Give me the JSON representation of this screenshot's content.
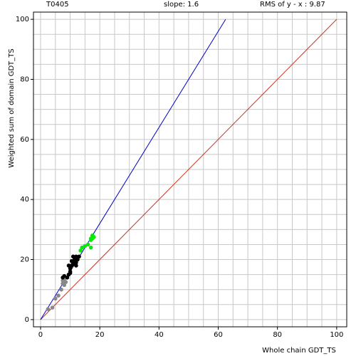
{
  "chart_data": {
    "type": "scatter",
    "header": [
      "T0405",
      "slope: 1.6",
      "RMS of  y - x : 9.87"
    ],
    "x_label": "Whole chain GDT_TS",
    "y_label": "Weighted sum of domain GDT_TS",
    "xlim": [
      -2.4,
      103.4
    ],
    "ylim": [
      -2.4,
      102.4
    ],
    "xticks": [
      0,
      20,
      40,
      60,
      80,
      100
    ],
    "yticks": [
      0,
      20,
      40,
      60,
      80,
      100
    ],
    "grid_lines": [
      0,
      5,
      10,
      15,
      20,
      25,
      30,
      35,
      40,
      45,
      50,
      55,
      60,
      65,
      70,
      75,
      80,
      85,
      90,
      95,
      100
    ],
    "fit_line": {
      "slope": 1.6,
      "color": "#0000cc"
    },
    "reference_line": {
      "slope": 1,
      "color": "#cc3322"
    },
    "series": [
      {
        "color": "#888888",
        "x": [
          2.5,
          4,
          5,
          6,
          7,
          7.5,
          8,
          8,
          8.5,
          7.5
        ],
        "y": [
          3.5,
          4,
          7,
          8,
          10,
          12,
          13,
          11.5,
          12.5,
          13
        ]
      },
      {
        "color": "#000000",
        "x": [
          7.5,
          8,
          9,
          9.5,
          10,
          10,
          10.5,
          9.5,
          11,
          11.5,
          11,
          12,
          12.5,
          12,
          11,
          10,
          13,
          12,
          10.5
        ],
        "y": [
          14,
          14.5,
          14,
          15,
          16,
          17,
          18,
          18,
          19,
          20,
          21,
          21,
          20,
          18,
          18.5,
          15.5,
          21,
          19,
          19.5
        ]
      },
      {
        "color": "#00ee00",
        "x": [
          13.5,
          14,
          15,
          16,
          17,
          17,
          17.5,
          17.5,
          18,
          17
        ],
        "y": [
          23,
          24,
          24.5,
          25,
          24,
          26.5,
          27,
          28,
          27.5,
          27
        ]
      }
    ]
  }
}
